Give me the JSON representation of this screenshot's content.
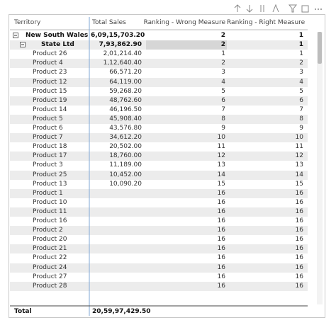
{
  "table": {
    "columns": [
      "Territory",
      "Total Sales",
      "Ranking - Wrong Measure",
      "Ranking - Right Measure"
    ],
    "rows": [
      [
        "New South Wales",
        "6,09,15,703.20",
        "2",
        "1"
      ],
      [
        "State Ltd",
        "7,93,862.90",
        "2",
        "1"
      ],
      [
        "Product 26",
        "2,01,214.40",
        "1",
        "1"
      ],
      [
        "Product 4",
        "1,12,640.40",
        "2",
        "2"
      ],
      [
        "Product 23",
        "66,571.20",
        "3",
        "3"
      ],
      [
        "Product 12",
        "64,119.00",
        "4",
        "4"
      ],
      [
        "Product 15",
        "59,268.20",
        "5",
        "5"
      ],
      [
        "Product 19",
        "48,762.60",
        "6",
        "6"
      ],
      [
        "Product 14",
        "46,196.50",
        "7",
        "7"
      ],
      [
        "Product 5",
        "45,908.40",
        "8",
        "8"
      ],
      [
        "Product 6",
        "43,576.80",
        "9",
        "9"
      ],
      [
        "Product 7",
        "34,612.20",
        "10",
        "10"
      ],
      [
        "Product 18",
        "20,502.00",
        "11",
        "11"
      ],
      [
        "Product 17",
        "18,760.00",
        "12",
        "12"
      ],
      [
        "Product 3",
        "11,189.00",
        "13",
        "13"
      ],
      [
        "Product 25",
        "10,452.00",
        "14",
        "14"
      ],
      [
        "Product 13",
        "10,090.20",
        "15",
        "15"
      ],
      [
        "Product 1",
        null,
        "16",
        "16"
      ],
      [
        "Product 10",
        null,
        "16",
        "16"
      ],
      [
        "Product 11",
        null,
        "16",
        "16"
      ],
      [
        "Product 16",
        null,
        "16",
        "16"
      ],
      [
        "Product 2",
        null,
        "16",
        "16"
      ],
      [
        "Product 20",
        null,
        "16",
        "16"
      ],
      [
        "Product 21",
        null,
        "16",
        "16"
      ],
      [
        "Product 22",
        null,
        "16",
        "16"
      ],
      [
        "Product 24",
        null,
        "16",
        "16"
      ],
      [
        "Product 27",
        null,
        "16",
        "16"
      ],
      [
        "Product 28",
        null,
        "16",
        "16"
      ]
    ],
    "total": [
      "Total",
      "20,59,97,429.50"
    ]
  }
}
